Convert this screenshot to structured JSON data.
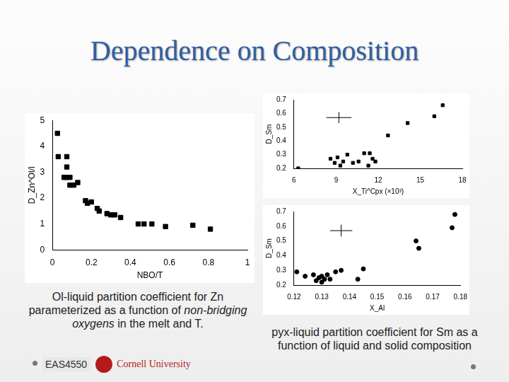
{
  "slide": {
    "title": "Dependence on Composition",
    "captions": [
      {
        "text": "Ol-liquid partition coefficient for Zn parameterized as a function of non-bridging oxygens in the melt and T.",
        "emphasis": "non-bridging oxygens"
      },
      {
        "text": "pyx-liquid partition coefficient for Sm as a function of liquid and solid composition"
      }
    ],
    "footer": {
      "course": "EAS4550",
      "institution": "Cornell University"
    }
  },
  "chart_data": [
    {
      "type": "scatter",
      "x_label": "NBO/T",
      "y_label": "D_Zn^Ol/l",
      "marker": "square",
      "color": "#000000",
      "grid": false,
      "x": [
        0.026,
        0.03,
        0.074,
        0.074,
        0.074,
        0.06,
        0.09,
        0.09,
        0.11,
        0.13,
        0.17,
        0.18,
        0.2,
        0.23,
        0.24,
        0.28,
        0.3,
        0.32,
        0.35,
        0.44,
        0.47,
        0.51,
        0.58,
        0.72,
        0.81
      ],
      "values": [
        4.5,
        3.6,
        3.6,
        3.2,
        2.8,
        2.8,
        2.8,
        2.5,
        2.5,
        2.6,
        1.9,
        1.8,
        1.85,
        1.6,
        1.5,
        1.4,
        1.35,
        1.35,
        1.25,
        1.0,
        1.0,
        1.0,
        0.9,
        0.95,
        0.8
      ],
      "xlim": [
        0,
        1
      ],
      "xticks": [
        0,
        0.2,
        0.4,
        0.6,
        0.8,
        1
      ],
      "ylim": [
        0,
        5
      ],
      "yticks": [
        0,
        1,
        2,
        3,
        4,
        5
      ]
    },
    {
      "type": "scatter",
      "x_label": "X_Ti^Cpx (×10³)",
      "y_label": "D_Sm",
      "marker": "square",
      "color": "#000000",
      "grid": false,
      "x": [
        6.3,
        8.6,
        8.9,
        9.1,
        9.3,
        9.5,
        9.8,
        10.2,
        10.6,
        11.0,
        11.4,
        11.6,
        11.3,
        11.8,
        12.7,
        14.1,
        16.0,
        16.6
      ],
      "values": [
        0.2,
        0.27,
        0.24,
        0.28,
        0.22,
        0.25,
        0.3,
        0.24,
        0.25,
        0.31,
        0.31,
        0.27,
        0.22,
        0.25,
        0.44,
        0.53,
        0.58,
        0.66
      ],
      "error_bar": {
        "x": 9.2,
        "y": 0.57,
        "x_err": 0.9,
        "y_err": 0.04
      },
      "xlim": [
        6,
        18
      ],
      "xticks": [
        6,
        9,
        12,
        15,
        18
      ],
      "ylim": [
        0.2,
        0.7
      ],
      "yticks": [
        0.2,
        0.3,
        0.4,
        0.5,
        0.6,
        0.7
      ]
    },
    {
      "type": "scatter",
      "x_label": "X_Al",
      "y_label": "D_Sm",
      "marker": "circle",
      "color": "#000000",
      "grid": false,
      "x": [
        0.121,
        0.124,
        0.127,
        0.128,
        0.129,
        0.13,
        0.13,
        0.131,
        0.132,
        0.133,
        0.135,
        0.137,
        0.143,
        0.145,
        0.164,
        0.165,
        0.177,
        0.178
      ],
      "values": [
        0.29,
        0.26,
        0.27,
        0.23,
        0.25,
        0.26,
        0.22,
        0.24,
        0.27,
        0.24,
        0.29,
        0.3,
        0.24,
        0.31,
        0.5,
        0.45,
        0.59,
        0.68
      ],
      "error_bar": {
        "x": 0.137,
        "y": 0.57,
        "x_err": 0.004,
        "y_err": 0.04
      },
      "xlim": [
        0.12,
        0.18
      ],
      "xticks": [
        0.12,
        0.13,
        0.14,
        0.15,
        0.16,
        0.17,
        0.18
      ],
      "ylim": [
        0.2,
        0.7
      ],
      "yticks": [
        0.2,
        0.3,
        0.4,
        0.5,
        0.6,
        0.7
      ]
    }
  ]
}
